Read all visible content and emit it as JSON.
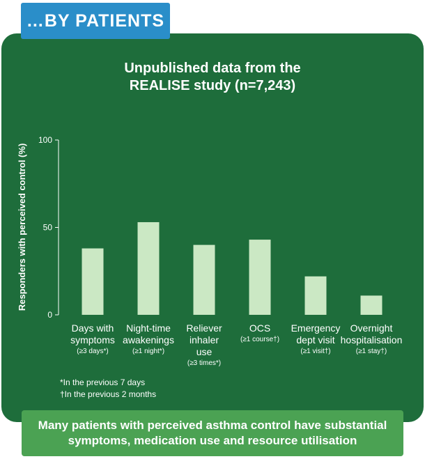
{
  "banner": "…BY PATIENTS",
  "title_line1": "Unpublished data from the",
  "title_line2": "REALISE study (n=7,243)",
  "footnotes": [
    "*In the previous 7 days",
    "†In the previous 2 months"
  ],
  "callout_line1": "Many patients with perceived asthma control have substantial",
  "callout_line2": "symptoms, medication use and resource utilisation",
  "colors": {
    "card": "#1e6d3b",
    "bar": "#cbe8c4",
    "banner": "#2a8ec9",
    "callout": "#4ba253"
  },
  "chart_data": {
    "type": "bar",
    "ylabel": "Responders with perceived control (%)",
    "ylim": [
      0,
      100
    ],
    "yticks": [
      0,
      50,
      100
    ],
    "grid": false,
    "categories": [
      {
        "lines": [
          "Days with",
          "symptoms"
        ],
        "sub": "(≥3 days*)"
      },
      {
        "lines": [
          "Night-time",
          "awakenings"
        ],
        "sub": "(≥1 night*)"
      },
      {
        "lines": [
          "Reliever",
          "inhaler",
          "use"
        ],
        "sub": "(≥3 times*)"
      },
      {
        "lines": [
          "OCS"
        ],
        "sub": "(≥1 course†)"
      },
      {
        "lines": [
          "Emergency",
          "dept visit"
        ],
        "sub": "(≥1 visit†)"
      },
      {
        "lines": [
          "Overnight",
          "hospitalisation"
        ],
        "sub": "(≥1 stay†)"
      }
    ],
    "values": [
      38,
      53,
      40,
      43,
      22,
      11
    ]
  }
}
